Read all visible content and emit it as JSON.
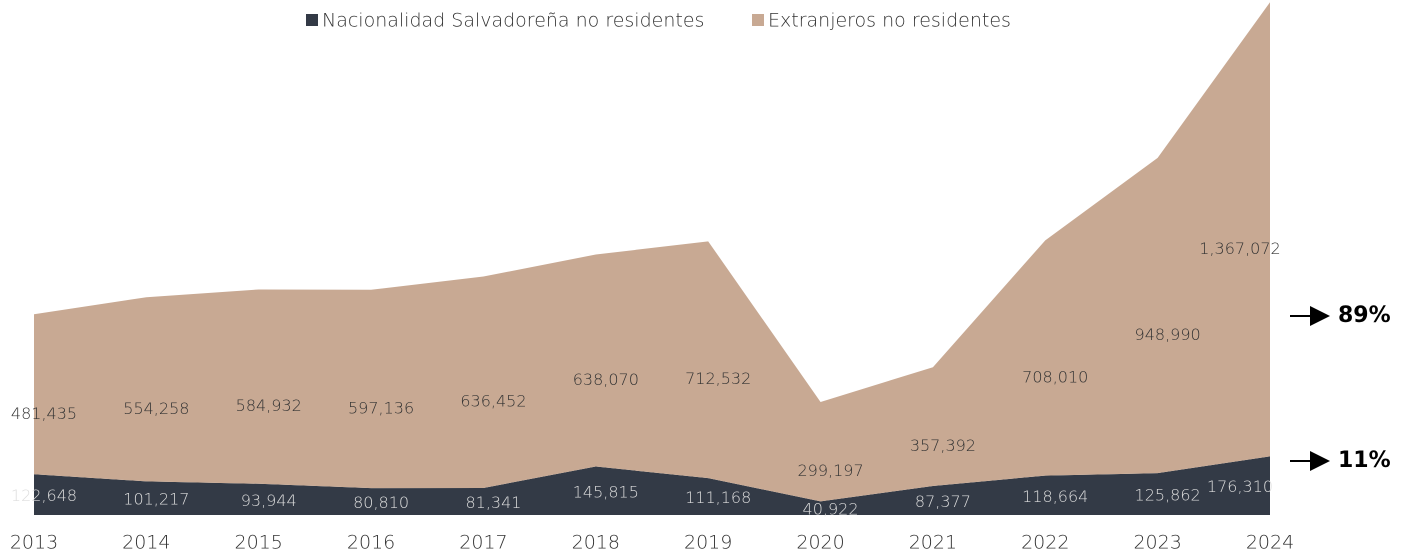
{
  "chart_data": {
    "type": "stacked_area",
    "categories": [
      "2013",
      "2014",
      "2015",
      "2016",
      "2017",
      "2018",
      "2019",
      "2020",
      "2021",
      "2022",
      "2023",
      "2024"
    ],
    "series": [
      {
        "name": "Nacionalidad Salvadoreña no residentes",
        "color": "#333a46",
        "values": [
          122648,
          101217,
          93944,
          80810,
          81341,
          145815,
          111168,
          40922,
          87377,
          118664,
          125862,
          176310
        ],
        "value_labels": [
          "122,648",
          "101,217",
          "93,944",
          "80,810",
          "81,341",
          "145,815",
          "111,168",
          "40,922",
          "87,377",
          "118,664",
          "125,862",
          "176,310"
        ]
      },
      {
        "name": "Extranjeros no residentes",
        "color": "#c8a993",
        "values": [
          481435,
          554258,
          584932,
          597136,
          636452,
          638070,
          712532,
          299197,
          357392,
          708010,
          948990,
          1367072
        ],
        "value_labels": [
          "481,435",
          "554,258",
          "584,932",
          "597,136",
          "636,452",
          "638,070",
          "712,532",
          "299,197",
          "357,392",
          "708,010",
          "948,990",
          "1,367,072"
        ]
      }
    ],
    "ylim": [
      0,
      1550000
    ],
    "annotations": [
      "89%",
      "11%"
    ]
  }
}
